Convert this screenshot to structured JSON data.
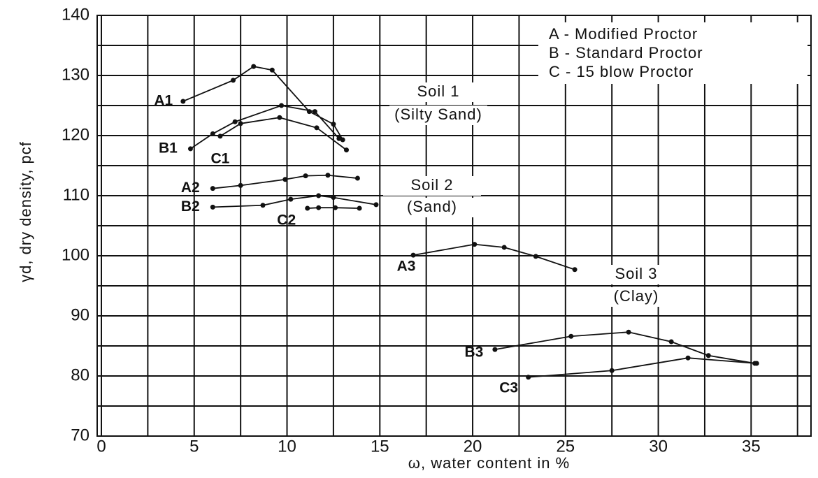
{
  "chart_data": {
    "type": "line",
    "x_label": "ω, water content in %",
    "y_label": "γd, dry density, pcf",
    "xlim": [
      0,
      38
    ],
    "xticks": [
      0,
      5,
      10,
      15,
      20,
      25,
      30,
      35
    ],
    "ylim": [
      70,
      140
    ],
    "yticks": [
      70,
      80,
      90,
      100,
      110,
      120,
      130,
      140
    ],
    "grid": true,
    "color": "#111111",
    "legend_position": "upper right",
    "legend_text": [
      "A - Modified Proctor",
      "B - Standard Proctor",
      "C - 15 blow Proctor"
    ],
    "annotations": [
      "Soil 1",
      "(Silty Sand)",
      "Soil 2",
      "(Sand)",
      "Soil 3",
      "(Clay)"
    ],
    "series": [
      {
        "name": "A1",
        "x": [
          4.4,
          7.1,
          8.2,
          9.2,
          11.2,
          12.5,
          13.0
        ],
        "values": [
          125.7,
          129.2,
          131.5,
          130.9,
          124.0,
          121.9,
          119.3
        ]
      },
      {
        "name": "B1",
        "x": [
          4.8,
          6.0,
          7.2,
          9.7,
          11.5,
          12.8
        ],
        "values": [
          117.8,
          120.3,
          122.3,
          125.0,
          124.0,
          119.5
        ]
      },
      {
        "name": "C1",
        "x": [
          6.4,
          7.5,
          9.6,
          11.6,
          13.2
        ],
        "values": [
          119.9,
          122.0,
          123.0,
          121.3,
          117.6
        ]
      },
      {
        "name": "A2",
        "x": [
          6.0,
          7.5,
          9.9,
          11.0,
          12.2,
          13.8
        ],
        "values": [
          111.2,
          111.7,
          112.7,
          113.3,
          113.4,
          112.9
        ]
      },
      {
        "name": "B2",
        "x": [
          6.0,
          8.7,
          10.2,
          11.7,
          12.5,
          14.8
        ],
        "values": [
          108.1,
          108.4,
          109.4,
          110.0,
          109.7,
          108.5
        ]
      },
      {
        "name": "C2",
        "x": [
          11.1,
          11.7,
          12.6,
          13.9
        ],
        "values": [
          107.9,
          108.0,
          108.0,
          107.9
        ]
      },
      {
        "name": "A3",
        "x": [
          16.8,
          20.1,
          21.7,
          23.4,
          25.5
        ],
        "values": [
          100.1,
          101.9,
          101.4,
          99.9,
          97.7
        ]
      },
      {
        "name": "B3",
        "x": [
          21.2,
          25.3,
          28.4,
          30.7,
          32.7,
          35.2
        ],
        "values": [
          84.4,
          86.6,
          87.3,
          85.7,
          83.4,
          82.1
        ]
      },
      {
        "name": "C3",
        "x": [
          23.0,
          27.5,
          31.6,
          35.3
        ],
        "values": [
          79.8,
          80.9,
          83.0,
          82.1
        ]
      }
    ]
  }
}
